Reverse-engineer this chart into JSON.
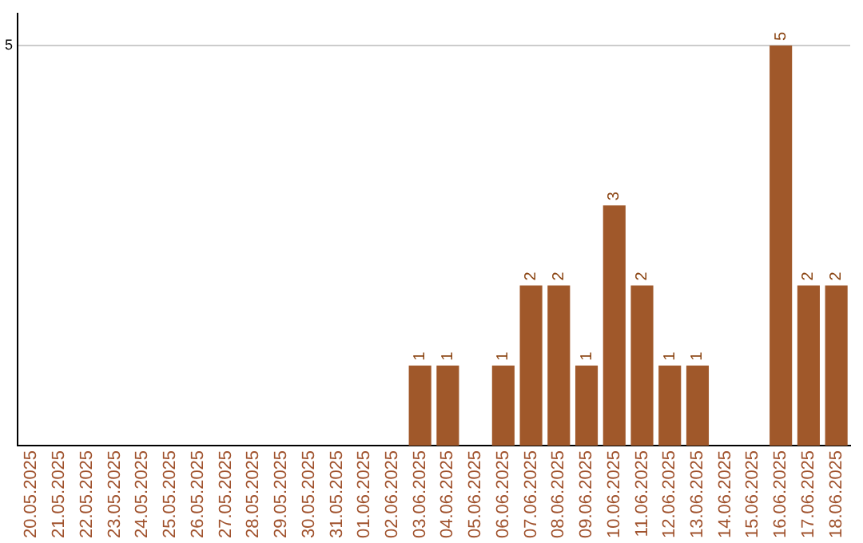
{
  "chart_data": {
    "type": "bar",
    "categories": [
      "20.05.2025",
      "21.05.2025",
      "22.05.2025",
      "23.05.2025",
      "24.05.2025",
      "25.05.2025",
      "26.05.2025",
      "27.05.2025",
      "28.05.2025",
      "29.05.2025",
      "30.05.2025",
      "31.05.2025",
      "01.06.2025",
      "02.06.2025",
      "03.06.2025",
      "04.06.2025",
      "05.06.2025",
      "06.06.2025",
      "07.06.2025",
      "08.06.2025",
      "09.06.2025",
      "10.06.2025",
      "11.06.2025",
      "12.06.2025",
      "13.06.2025",
      "14.06.2025",
      "15.06.2025",
      "16.06.2025",
      "17.06.2025",
      "18.06.2025"
    ],
    "values": [
      null,
      null,
      null,
      null,
      null,
      null,
      null,
      null,
      null,
      null,
      null,
      null,
      null,
      null,
      1,
      1,
      null,
      1,
      2,
      2,
      1,
      3,
      2,
      1,
      1,
      null,
      null,
      5,
      2,
      2
    ],
    "color": "#a0582a",
    "ylim": [
      0,
      5.4
    ],
    "yticks": [
      5
    ],
    "grid": "y",
    "data_labels": true
  }
}
